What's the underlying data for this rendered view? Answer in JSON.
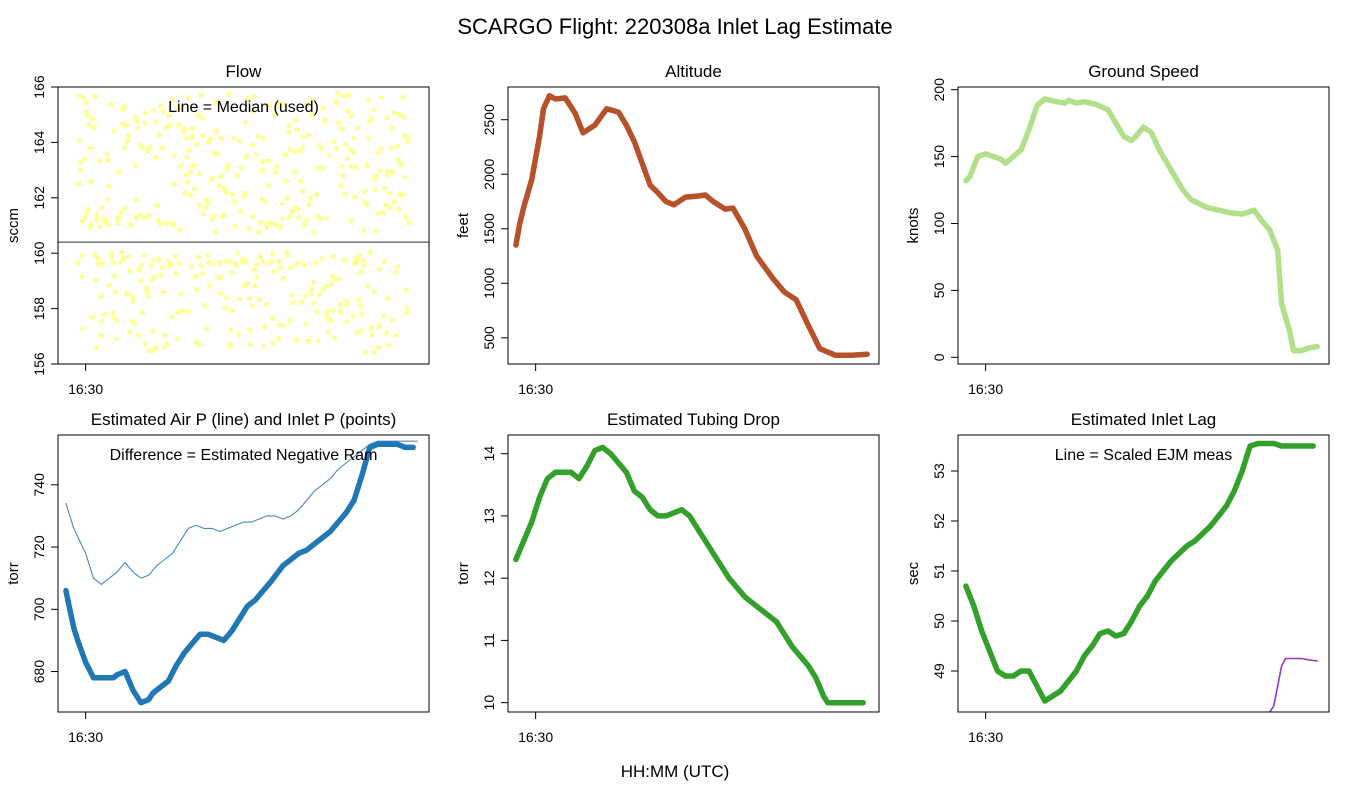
{
  "figure": {
    "title": "SCARGO Flight: 220308a  Inlet Lag Estimate",
    "xlabel": "HH:MM (UTC)"
  },
  "chart_data": [
    {
      "id": "flow",
      "type": "scatter",
      "title": "Flow",
      "ylabel": "sccm",
      "xlabel": "",
      "annotation": "Line = Median (used)",
      "color": "#ffff99",
      "grid": false,
      "ylim": [
        156,
        166
      ],
      "yticks": [
        156,
        158,
        160,
        162,
        164,
        166
      ],
      "xlim": [
        16.43,
        17.37
      ],
      "xticks": [
        {
          "value": 16.5,
          "label": "16:30"
        }
      ],
      "median": 160.4,
      "median_color": "#555555",
      "scatter_range": [
        156.4,
        165.8
      ],
      "n_points": 520
    },
    {
      "id": "altitude",
      "type": "line",
      "title": "Altitude",
      "ylabel": "feet",
      "xlabel": "",
      "color": "#b5522a",
      "grid": false,
      "ylim": [
        260,
        2800
      ],
      "yticks": [
        500,
        1000,
        1500,
        2000,
        2500
      ],
      "xlim": [
        16.43,
        17.37
      ],
      "xticks": [
        {
          "value": 16.5,
          "label": "16:30"
        }
      ],
      "series": [
        {
          "x": [
            16.45,
            16.46,
            16.47,
            16.49,
            16.51,
            16.52,
            16.535,
            16.55,
            16.575,
            16.6,
            16.62,
            16.65,
            16.68,
            16.71,
            16.73,
            16.75,
            16.77,
            16.79,
            16.81,
            16.83,
            16.85,
            16.88,
            16.91,
            16.93,
            16.95,
            16.98,
            17.0,
            17.03,
            17.06,
            17.08,
            17.1,
            17.13,
            17.16,
            17.19,
            17.22,
            17.26,
            17.3,
            17.34
          ],
          "y": [
            1350,
            1550,
            1700,
            1950,
            2350,
            2600,
            2720,
            2690,
            2700,
            2560,
            2380,
            2450,
            2600,
            2570,
            2450,
            2300,
            2100,
            1900,
            1830,
            1750,
            1720,
            1790,
            1800,
            1810,
            1750,
            1680,
            1690,
            1500,
            1250,
            1150,
            1050,
            920,
            850,
            620,
            400,
            340,
            340,
            350
          ]
        }
      ]
    },
    {
      "id": "ground-speed",
      "type": "line",
      "title": "Ground Speed",
      "ylabel": "knots",
      "xlabel": "",
      "color": "#b2df8a",
      "grid": false,
      "ylim": [
        -5,
        202
      ],
      "yticks": [
        0,
        50,
        100,
        150,
        200
      ],
      "xlim": [
        16.43,
        17.37
      ],
      "xticks": [
        {
          "value": 16.5,
          "label": "16:30"
        }
      ],
      "series": [
        {
          "x": [
            16.45,
            16.46,
            16.48,
            16.5,
            16.52,
            16.54,
            16.55,
            16.57,
            16.59,
            16.61,
            16.63,
            16.65,
            16.68,
            16.7,
            16.71,
            16.73,
            16.75,
            16.78,
            16.81,
            16.84,
            16.85,
            16.87,
            16.88,
            16.9,
            16.92,
            16.94,
            16.97,
            17.0,
            17.02,
            17.04,
            17.06,
            17.09,
            17.12,
            17.15,
            17.18,
            17.2,
            17.22,
            17.24,
            17.25,
            17.27,
            17.28,
            17.3,
            17.32,
            17.34
          ],
          "y": [
            132,
            135,
            150,
            152,
            150,
            148,
            145,
            150,
            155,
            170,
            188,
            193,
            191,
            190,
            192,
            190,
            191,
            189,
            185,
            170,
            165,
            162,
            165,
            172,
            168,
            155,
            140,
            125,
            118,
            115,
            112,
            110,
            108,
            107,
            110,
            102,
            95,
            80,
            40,
            20,
            5,
            5,
            7,
            8
          ]
        }
      ]
    },
    {
      "id": "air-inlet-pressure",
      "type": "line",
      "title": "Estimated Air P (line) and Inlet P (points)",
      "ylabel": "torr",
      "xlabel": "",
      "annotation": "Difference = Estimated Negative Ram",
      "grid": false,
      "ylim": [
        667,
        756
      ],
      "yticks": [
        680,
        700,
        720,
        740
      ],
      "xlim": [
        16.43,
        17.37
      ],
      "xticks": [
        {
          "value": 16.5,
          "label": "16:30"
        }
      ],
      "series": [
        {
          "role": "air",
          "color": "#4a86bf",
          "x": [
            16.45,
            16.47,
            16.5,
            16.52,
            16.54,
            16.56,
            16.58,
            16.6,
            16.62,
            16.64,
            16.66,
            16.68,
            16.7,
            16.72,
            16.74,
            16.76,
            16.78,
            16.8,
            16.82,
            16.84,
            16.86,
            16.88,
            16.9,
            16.92,
            16.94,
            16.96,
            16.98,
            17.0,
            17.02,
            17.04,
            17.06,
            17.08,
            17.1,
            17.12,
            17.14,
            17.16,
            17.18,
            17.2,
            17.22,
            17.24,
            17.26,
            17.28,
            17.3,
            17.32,
            17.34
          ],
          "y": [
            734,
            726,
            718,
            710,
            708,
            710,
            712,
            715,
            712,
            710,
            711,
            714,
            716,
            718,
            722,
            726,
            727,
            726,
            726,
            725,
            726,
            727,
            728,
            728,
            729,
            730,
            730,
            729,
            730,
            732,
            735,
            738,
            740,
            742,
            745,
            747,
            749,
            751,
            753,
            754,
            754,
            754,
            754,
            754,
            754
          ]
        },
        {
          "role": "inlet",
          "color": "#1f78b4",
          "x": [
            16.45,
            16.46,
            16.47,
            16.48,
            16.5,
            16.52,
            16.53,
            16.55,
            16.57,
            16.58,
            16.6,
            16.62,
            16.64,
            16.66,
            16.67,
            16.69,
            16.71,
            16.73,
            16.75,
            16.77,
            16.79,
            16.81,
            16.83,
            16.85,
            16.87,
            16.89,
            16.91,
            16.93,
            16.95,
            16.97,
            17.0,
            17.02,
            17.04,
            17.06,
            17.08,
            17.1,
            17.12,
            17.14,
            17.16,
            17.18,
            17.2,
            17.22,
            17.24,
            17.25,
            17.27,
            17.29,
            17.31,
            17.33
          ],
          "y": [
            706,
            700,
            694,
            690,
            683,
            678,
            678,
            678,
            678,
            679,
            680,
            674,
            670,
            671,
            673,
            675,
            677,
            682,
            686,
            689,
            692,
            692,
            691,
            690,
            693,
            697,
            701,
            703,
            706,
            709,
            714,
            716,
            718,
            719,
            721,
            723,
            725,
            728,
            731,
            735,
            743,
            752,
            753,
            753,
            753,
            753,
            752,
            752
          ]
        }
      ]
    },
    {
      "id": "tubing-drop",
      "type": "line",
      "title": "Estimated Tubing Drop",
      "ylabel": "torr",
      "xlabel": "",
      "color": "#33a02c",
      "grid": false,
      "ylim": [
        9.85,
        14.3
      ],
      "yticks": [
        10,
        11,
        12,
        13,
        14
      ],
      "xlim": [
        16.43,
        17.37
      ],
      "xticks": [
        {
          "value": 16.5,
          "label": "16:30"
        }
      ],
      "series": [
        {
          "x": [
            16.45,
            16.47,
            16.49,
            16.51,
            16.53,
            16.55,
            16.57,
            16.59,
            16.61,
            16.63,
            16.65,
            16.67,
            16.69,
            16.71,
            16.73,
            16.75,
            16.77,
            16.79,
            16.81,
            16.83,
            16.85,
            16.87,
            16.89,
            16.91,
            16.93,
            16.95,
            16.97,
            16.99,
            17.01,
            17.03,
            17.05,
            17.07,
            17.09,
            17.11,
            17.13,
            17.15,
            17.17,
            17.19,
            17.21,
            17.23,
            17.24,
            17.25,
            17.26,
            17.27,
            17.29,
            17.31,
            17.33
          ],
          "y": [
            12.3,
            12.6,
            12.9,
            13.3,
            13.6,
            13.7,
            13.7,
            13.7,
            13.6,
            13.8,
            14.05,
            14.1,
            14.0,
            13.85,
            13.7,
            13.4,
            13.3,
            13.1,
            13.0,
            13.0,
            13.05,
            13.1,
            13.0,
            12.8,
            12.6,
            12.4,
            12.2,
            12.0,
            11.85,
            11.7,
            11.6,
            11.5,
            11.4,
            11.3,
            11.1,
            10.9,
            10.75,
            10.6,
            10.4,
            10.1,
            10.0,
            10.0,
            10.0,
            10.0,
            10.0,
            10.0,
            10.0
          ]
        }
      ]
    },
    {
      "id": "inlet-lag",
      "type": "line",
      "title": "Estimated Inlet Lag",
      "ylabel": "sec",
      "xlabel": "",
      "annotation": "Line = Scaled EJM meas",
      "grid": false,
      "ylim": [
        48.18,
        53.72
      ],
      "yticks": [
        49,
        50,
        51,
        52,
        53
      ],
      "xlim": [
        16.43,
        17.37
      ],
      "xticks": [
        {
          "value": 16.5,
          "label": "16:30"
        }
      ],
      "series": [
        {
          "role": "lag",
          "color": "#33a02c",
          "x": [
            16.45,
            16.47,
            16.49,
            16.51,
            16.53,
            16.55,
            16.57,
            16.59,
            16.61,
            16.63,
            16.65,
            16.67,
            16.69,
            16.71,
            16.73,
            16.75,
            16.77,
            16.79,
            16.81,
            16.83,
            16.85,
            16.87,
            16.89,
            16.91,
            16.93,
            16.95,
            16.97,
            16.99,
            17.01,
            17.03,
            17.05,
            17.07,
            17.09,
            17.11,
            17.13,
            17.15,
            17.17,
            17.19,
            17.2,
            17.22,
            17.23,
            17.25,
            17.27,
            17.29,
            17.31,
            17.33
          ],
          "y": [
            50.7,
            50.3,
            49.8,
            49.4,
            49.0,
            48.9,
            48.9,
            49.0,
            49.0,
            48.7,
            48.4,
            48.5,
            48.6,
            48.8,
            49.0,
            49.3,
            49.5,
            49.75,
            49.8,
            49.7,
            49.75,
            50.0,
            50.3,
            50.5,
            50.8,
            51.0,
            51.2,
            51.35,
            51.5,
            51.6,
            51.75,
            51.9,
            52.1,
            52.3,
            52.6,
            53.0,
            53.5,
            53.55,
            53.55,
            53.55,
            53.55,
            53.5,
            53.5,
            53.5,
            53.5,
            53.5
          ]
        },
        {
          "role": "ejm",
          "color": "#9933cc",
          "x": [
            17.22,
            17.23,
            17.24,
            17.25,
            17.26,
            17.28,
            17.3,
            17.32,
            17.34
          ],
          "y": [
            48.18,
            48.3,
            48.7,
            49.1,
            49.25,
            49.25,
            49.25,
            49.22,
            49.2
          ]
        }
      ]
    }
  ]
}
